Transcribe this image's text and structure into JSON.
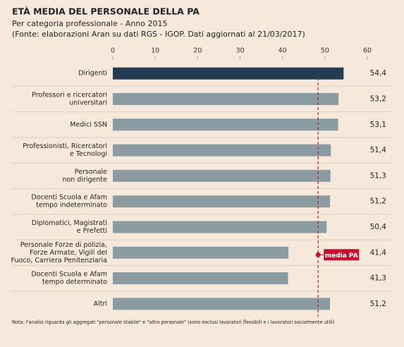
{
  "chart_data": {
    "type": "bar",
    "orientation": "horizontal",
    "title": "ETÀ MEDIA DEL PERSONALE DELLA PA",
    "subtitle": [
      "Per categoria professionale - Anno 2015",
      "(Fonte: elaborazioni Aran su dati RGS - IGOP. Dati aggiornati al 21/03/2017)"
    ],
    "categories": [
      [
        "Dirigenti"
      ],
      [
        "Professori e ricercatori",
        "universitari"
      ],
      [
        "Medici SSN"
      ],
      [
        "Professionisti, Ricercatori",
        "e Tecnologi"
      ],
      [
        "Personale",
        "non dirigente"
      ],
      [
        "Docenti Scuola e Afam",
        "tempo indeterminato"
      ],
      [
        "Diplomatici, Magistrati",
        "e Prefetti"
      ],
      [
        "Personale Forze di polizia,",
        "Forze Armate, Vigili del",
        "Fuoco, Carriera Penitenziaria"
      ],
      [
        "Docenti Scuola e Afam",
        "tempo determinato"
      ],
      [
        "Altri"
      ]
    ],
    "values": [
      54.4,
      53.2,
      53.1,
      51.4,
      51.3,
      51.2,
      50.4,
      41.4,
      41.3,
      51.2
    ],
    "value_labels": [
      "54,4",
      "53,2",
      "53,1",
      "51,4",
      "51,3",
      "51,2",
      "50,4",
      "41,4",
      "41,3",
      "51,2"
    ],
    "colors": [
      "#243c51",
      "#8a9ca1",
      "#8a9ca1",
      "#8a9ca1",
      "#8a9ca1",
      "#8a9ca1",
      "#8a9ca1",
      "#8a9ca1",
      "#8a9ca1",
      "#8a9ca1"
    ],
    "xlim": [
      0,
      60
    ],
    "xticks": [
      0,
      10,
      20,
      30,
      40,
      50,
      60
    ],
    "reference_line": {
      "value": 48.4,
      "label": "media PA",
      "color": "#c8102e"
    },
    "note": "Nota: l'analisi riguarda gli aggregati \"personale stabile\" e \"altro personale\" (sono esclusi lavoratori flessibili e i lavoratori socialmente utili)"
  }
}
